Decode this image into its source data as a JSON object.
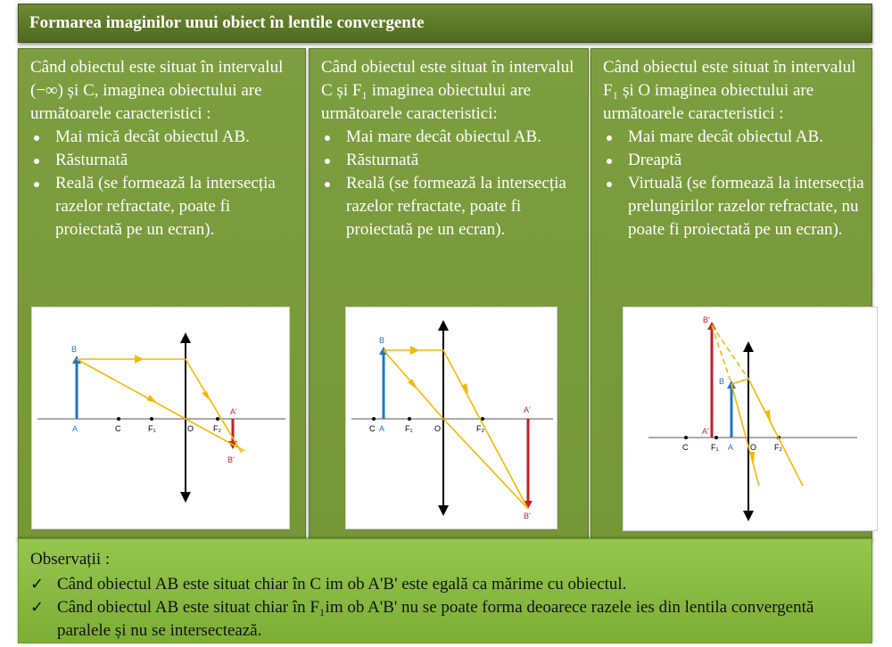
{
  "title": "Formarea imaginilor  unui obiect în lentile convergente",
  "columns": [
    {
      "intro": "Când obiectul este situat în intervalul  (−∞) și C, imaginea obiectului are următoarele caracteristici :",
      "bullets": [
        "Mai mică decât obiectul AB.",
        "Răsturnată",
        "Reală  (se formează la intersecția razelor refractate, poate fi proiectată pe un ecran)."
      ],
      "diagram": {
        "labels": [
          "B",
          "A",
          "C",
          "F₁",
          "O",
          "F₂",
          "A'",
          "B'"
        ]
      }
    },
    {
      "intro": "Când obiectul este situat în intervalul  C și F₁ imaginea obiectului are următoarele caracteristici:",
      "bullets": [
        "Mai mare decât obiectul AB.",
        "Răsturnată",
        "Reală  (se formează la intersecția razelor refractate, poate fi proiectată pe un ecran)."
      ],
      "diagram": {
        "labels": [
          "B",
          "C",
          "A",
          "F₁",
          "O",
          "F₂",
          "A'",
          "B'"
        ]
      }
    },
    {
      "intro": "Când obiectul este situat în intervalul  F₁ și O imaginea obiectului are următoarele caracteristici :",
      "bullets": [
        "Mai mare decât obiectul AB.",
        "Dreaptă",
        "Virtuală (se formează la intersecția prelungirilor razelor refractate, nu poate fi proiectată pe un ecran)."
      ],
      "diagram": {
        "labels": [
          "B'",
          "B",
          "A'",
          "C",
          "F₁",
          "A",
          "O",
          "F₂"
        ]
      }
    }
  ],
  "observations": {
    "heading": "Observații :",
    "items": [
      "Când obiectul AB este situat chiar în C im ob A'B' este egală ca mărime cu obiectul.",
      "Când obiectul AB este situat chiar în F₁im ob A'B' nu se poate forma deoarece razele ies din lentila convergentă paralele și nu se intersectează."
    ],
    "check_icon": "✓"
  },
  "colors": {
    "title_bg": "#5a7628",
    "column_bg": "#7a9b3c",
    "observations_bg": "#8dbf46",
    "ray": "#f5b800",
    "object": "#1f74c4",
    "image": "#c0202a"
  }
}
